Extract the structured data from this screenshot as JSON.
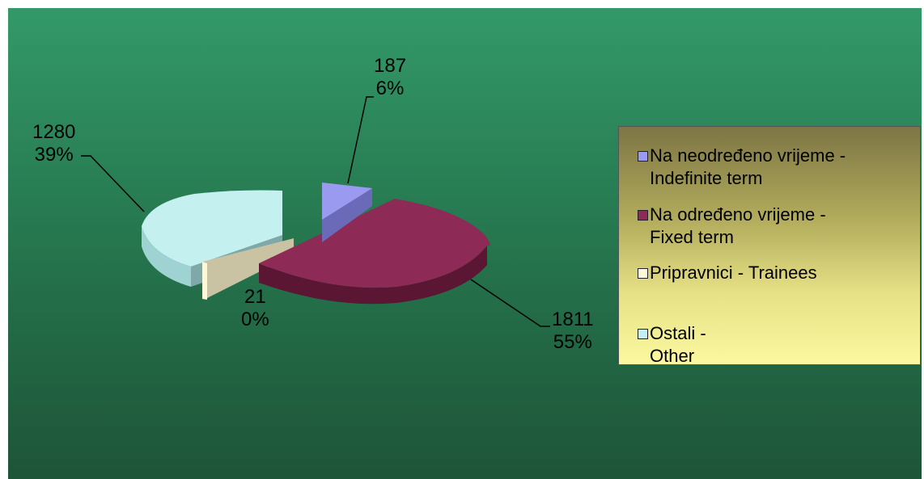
{
  "chart_data": {
    "type": "pie",
    "style": "3d-exploded",
    "slices": [
      {
        "label": "Na neodređeno vrijeme - Indefinite term",
        "legend_line1": "Na neodređeno vrijeme -",
        "legend_line2": "Indefinite term",
        "value": 187,
        "percent": "6%",
        "value_text": "187",
        "color": "#9a9af0"
      },
      {
        "label": "Na određeno vrijeme - Fixed term",
        "legend_line1": "Na određeno vrijeme -",
        "legend_line2": "Fixed term",
        "value": 1811,
        "percent": "55%",
        "value_text": "1811",
        "color": "#8e2a56"
      },
      {
        "label": "Pripravnici - Trainees",
        "legend_line1": "Pripravnici - Trainees",
        "legend_line2": "",
        "value": 21,
        "percent": "0%",
        "value_text": "21",
        "color": "#fcf8d8"
      },
      {
        "label": "Ostali - Other",
        "legend_line1": "Ostali -",
        "legend_line2": "Other",
        "value": 1280,
        "percent": "39%",
        "value_text": "1280",
        "color": "#c4f0f0"
      }
    ],
    "legend_position": "right"
  }
}
